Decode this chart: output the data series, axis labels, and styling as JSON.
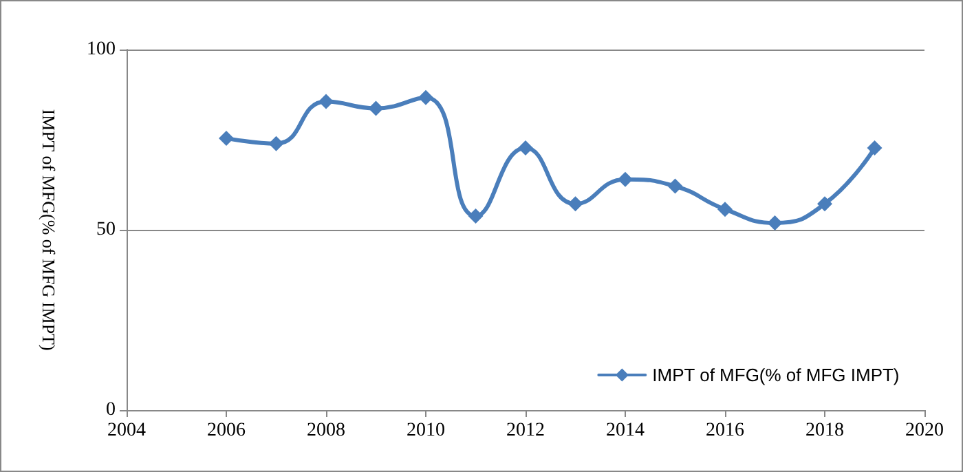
{
  "chart_data": {
    "type": "line",
    "ylabel": "IMPT of MFG(% of MFG IMPT)",
    "xlim": [
      2004,
      2020
    ],
    "xticks": [
      2004,
      2006,
      2008,
      2010,
      2012,
      2014,
      2016,
      2018,
      2020
    ],
    "ylim": [
      0,
      100
    ],
    "yticks": [
      0,
      50,
      100
    ],
    "grid": "y",
    "legend": "bottom right",
    "marker": "diamond",
    "line_style": "solid",
    "series": [
      {
        "name": "IMPT of MFG(% of MFG IMPT)",
        "color": "#4a7ebb",
        "x": [
          2006,
          2007,
          2008,
          2009,
          2010,
          2011,
          2012,
          2013,
          2014,
          2015,
          2016,
          2017,
          2018,
          2019
        ],
        "values": [
          75.4,
          73.9,
          85.6,
          83.7,
          86.7,
          53.8,
          72.7,
          57.2,
          64,
          62.1,
          55.7,
          51.9,
          57.2,
          72.7
        ]
      }
    ]
  }
}
